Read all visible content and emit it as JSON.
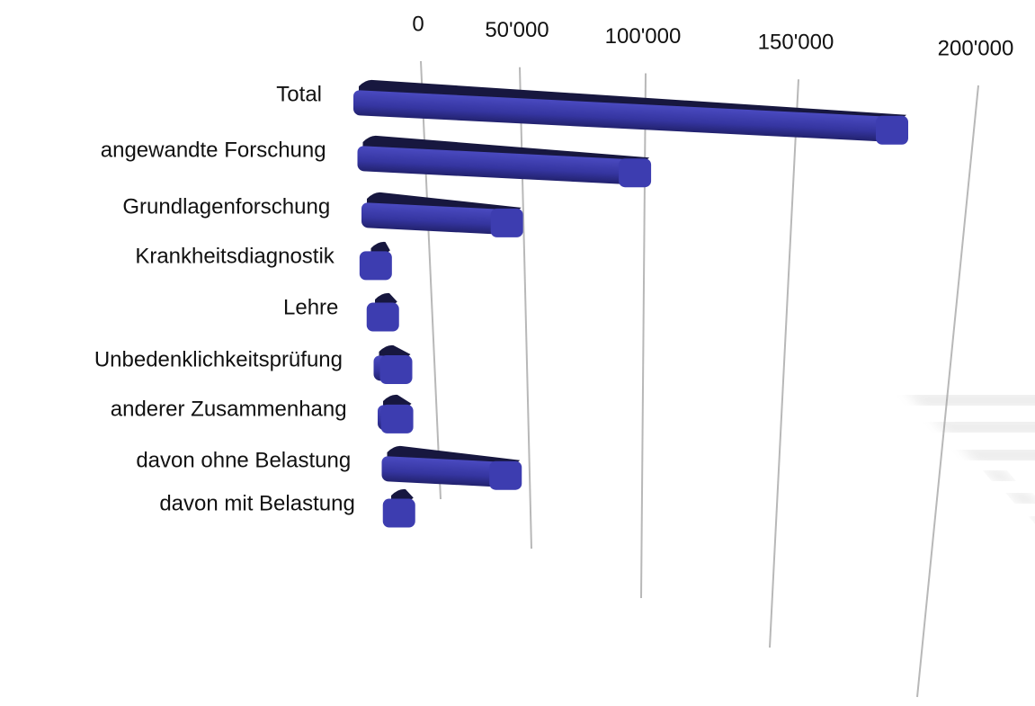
{
  "chart_data": {
    "type": "bar",
    "orientation": "horizontal",
    "categories": [
      "Total",
      "angewandte Forschung",
      "Grundlagenforschung",
      "Krankheitsdiagnostik",
      "Lehre",
      "Unbedenklichkeitsprüfung",
      "anderer Zusammenhang",
      "davon ohne Belastung",
      "davon mit Belastung"
    ],
    "values": [
      180000,
      95000,
      52000,
      8000,
      9000,
      12000,
      11000,
      45000,
      9000
    ],
    "color": "#3535a0",
    "xlim": [
      0,
      200000
    ],
    "xticks": [
      0,
      {
        "value": 50000,
        "label": "50'000"
      },
      {
        "value": 100000,
        "label": "100'000"
      },
      {
        "value": 150000,
        "label": "150'000"
      },
      {
        "value": 200000,
        "label": "200'000"
      }
    ],
    "grid": true
  }
}
